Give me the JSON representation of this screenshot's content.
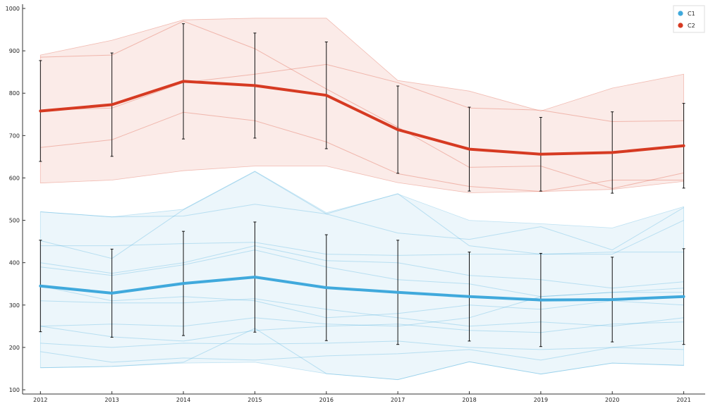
{
  "chart_data": {
    "type": "line",
    "x": [
      2012,
      2013,
      2014,
      2015,
      2016,
      2017,
      2018,
      2019,
      2020,
      2021
    ],
    "xlim": [
      2011.75,
      2021.3
    ],
    "ylim": [
      90,
      1010
    ],
    "yticks": [
      100,
      200,
      300,
      400,
      500,
      600,
      700,
      800,
      900,
      1000
    ],
    "grid": false,
    "legend_position": "top-right",
    "series": [
      {
        "name": "C1",
        "color": "#40a9dc",
        "mean": [
          345,
          328,
          351,
          366,
          341,
          330,
          320,
          312,
          313,
          320
        ],
        "error": [
          108,
          104,
          123,
          130,
          125,
          123,
          105,
          110,
          100,
          113
        ],
        "band_upper": [
          520,
          508,
          526,
          616,
          518,
          562,
          500,
          492,
          482,
          532
        ],
        "band_lower": [
          152,
          155,
          163,
          165,
          138,
          124,
          166,
          137,
          163,
          157
        ],
        "members": [
          [
            520,
            508,
            510,
            538,
            515,
            563,
            440,
            420,
            420,
            500
          ],
          [
            452,
            410,
            525,
            615,
            515,
            470,
            455,
            485,
            430,
            530
          ],
          [
            440,
            440,
            445,
            448,
            420,
            417,
            420,
            420,
            425,
            425
          ],
          [
            400,
            375,
            400,
            440,
            405,
            400,
            370,
            360,
            340,
            355
          ],
          [
            390,
            370,
            395,
            430,
            390,
            360,
            350,
            320,
            330,
            340
          ],
          [
            345,
            310,
            320,
            310,
            270,
            280,
            300,
            290,
            310,
            300
          ],
          [
            310,
            305,
            305,
            315,
            290,
            270,
            250,
            260,
            250,
            270
          ],
          [
            250,
            225,
            215,
            240,
            250,
            255,
            240,
            235,
            255,
            260
          ],
          [
            250,
            255,
            250,
            270,
            255,
            250,
            270,
            320,
            330,
            330
          ],
          [
            210,
            200,
            210,
            208,
            210,
            215,
            200,
            195,
            200,
            215
          ],
          [
            190,
            165,
            175,
            170,
            180,
            185,
            195,
            170,
            200,
            195
          ],
          [
            152,
            155,
            165,
            245,
            138,
            124,
            166,
            137,
            163,
            158
          ]
        ]
      },
      {
        "name": "C2",
        "color": "#d63a22",
        "mean": [
          758,
          773,
          828,
          818,
          795,
          714,
          668,
          656,
          660,
          676
        ],
        "error": [
          119,
          122,
          136,
          124,
          126,
          103,
          99,
          87,
          96,
          100
        ],
        "band_upper": [
          890,
          925,
          973,
          977,
          977,
          830,
          805,
          758,
          812,
          845
        ],
        "band_lower": [
          588,
          595,
          617,
          628,
          628,
          589,
          565,
          568,
          573,
          592
        ],
        "members": [
          [
            885,
            890,
            970,
            905,
            810,
            720,
            625,
            628,
            575,
            612
          ],
          [
            760,
            765,
            825,
            845,
            868,
            825,
            765,
            760,
            733,
            735
          ],
          [
            672,
            690,
            755,
            735,
            685,
            610,
            580,
            568,
            595,
            595
          ]
        ]
      }
    ]
  }
}
